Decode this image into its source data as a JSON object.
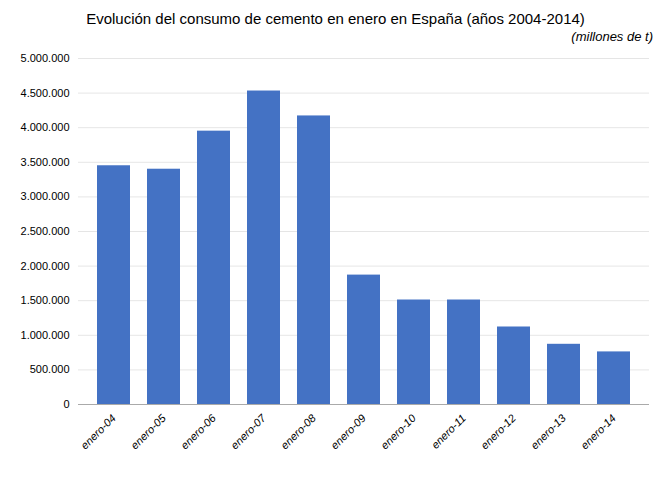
{
  "chart_data": {
    "type": "bar",
    "title": "Evolución del consumo de cemento en enero en España (años 2004-2014)",
    "subtitle": "(millones de t)",
    "categories": [
      "enero-04",
      "enero-05",
      "enero-06",
      "enero-07",
      "enero-08",
      "enero-09",
      "enero-10",
      "enero-11",
      "enero-12",
      "enero-13",
      "enero-14"
    ],
    "values": [
      3450000,
      3400000,
      3950000,
      4530000,
      4170000,
      1870000,
      1510000,
      1510000,
      1120000,
      870000,
      760000
    ],
    "color": "#4472C4",
    "ylim": [
      0,
      5000000
    ],
    "yticks": [
      0,
      {
        "value": 500000,
        "label": "500.000"
      },
      {
        "value": 1000000,
        "label": "1.000.000"
      },
      {
        "value": 1500000,
        "label": "1.500.000"
      },
      {
        "value": 2000000,
        "label": "2.000.000"
      },
      {
        "value": 2500000,
        "label": "2.500.000"
      },
      {
        "value": 3000000,
        "label": "3.000.000"
      },
      {
        "value": 3500000,
        "label": "3.500.000"
      },
      {
        "value": 4000000,
        "label": "4.000.000"
      },
      {
        "value": 4500000,
        "label": "4.500.000"
      },
      {
        "value": 5000000,
        "label": "5.000.000"
      }
    ],
    "grid": true
  }
}
